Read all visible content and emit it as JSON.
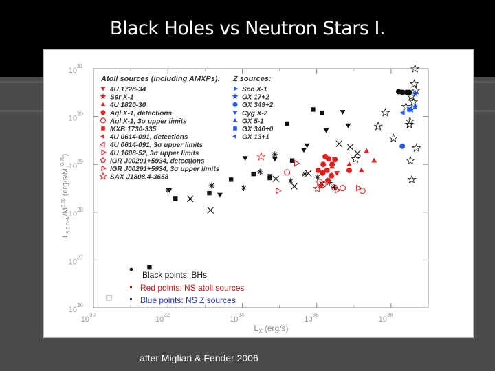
{
  "slide": {
    "title": "Black Holes vs Neutron Stars I.",
    "caption": "after Migliari & Fender 2006"
  },
  "colors": {
    "black": "#111111",
    "red": "#dd2222",
    "blue": "#2255ee",
    "legend_red": "#cc1111",
    "legend_blue": "#2233aa"
  },
  "chart_data": {
    "type": "scatter",
    "title": "",
    "xlabel": "L",
    "xlabel_sub": "X",
    "xlabel_unit": "(erg/s)",
    "ylabel": "L",
    "ylabel_sub": "8.6 GHz",
    "ylabel_unit": "/M",
    "ylabel_unit_sup": "0.78",
    "ylabel_tail": "(erg/s/M",
    "ylabel_tail_sub": "o",
    "ylabel_tail_sup": "0.78",
    "ylabel_close": ")",
    "x_scale": "log",
    "y_scale": "log",
    "xlim": [
      1e+30,
      1e+39
    ],
    "ylim": [
      1e+26,
      1e+31
    ],
    "x_ticks": [
      {
        "value": 1e+30,
        "base": "10",
        "exp": "30"
      },
      {
        "value": 1e+32,
        "base": "10",
        "exp": "32"
      },
      {
        "value": 1e+34,
        "base": "10",
        "exp": "34"
      },
      {
        "value": 1e+36,
        "base": "10",
        "exp": "36"
      },
      {
        "value": 1e+38,
        "base": "10",
        "exp": "38"
      }
    ],
    "y_ticks": [
      {
        "value": 1e+26,
        "base": "10",
        "exp": "26"
      },
      {
        "value": 1e+27,
        "base": "10",
        "exp": "27"
      },
      {
        "value": 1e+28,
        "base": "10",
        "exp": "28"
      },
      {
        "value": 1e+29,
        "base": "10",
        "exp": "29"
      },
      {
        "value": 1e+30,
        "base": "10",
        "exp": "30"
      },
      {
        "value": 1e+31,
        "base": "10",
        "exp": "31"
      }
    ],
    "grid": false,
    "legend_placement": "top-left",
    "legend_left": {
      "header": "Atoll sources (including AMXPs):",
      "entries": [
        {
          "label": "4U 1728-34",
          "marker": "tri-down",
          "color": "red"
        },
        {
          "label": "Ser X-1",
          "marker": "star-filled",
          "color": "red"
        },
        {
          "label": "4U 1820-30",
          "marker": "tri-up",
          "color": "red"
        },
        {
          "label": "Aql X-1, detections",
          "marker": "circle",
          "color": "red"
        },
        {
          "label": "Aql X-1, 3σ upper limits",
          "marker": "circle-open",
          "color": "red"
        },
        {
          "label": "MXB 1730-335",
          "marker": "square",
          "color": "red"
        },
        {
          "label": "4U 0614-091, detections",
          "marker": "tri-left",
          "color": "red"
        },
        {
          "label": "4U 0614-091, 3σ upper limits",
          "marker": "tri-left-open",
          "color": "red"
        },
        {
          "label": "4U 1608-52, 3σ upper limits",
          "marker": "tri-right-open",
          "color": "red"
        },
        {
          "label": "IGR J00291+5934, detections",
          "marker": "pentagon-open",
          "color": "red"
        },
        {
          "label": "IGR J00291+5934, 3σ upper limits",
          "marker": "tri-right-open",
          "color": "red"
        },
        {
          "label": "SAX J1808.4-3658",
          "marker": "star-open",
          "color": "red"
        }
      ]
    },
    "legend_right": {
      "header": "Z sources:",
      "entries": [
        {
          "label": "Sco X-1",
          "marker": "tri-right",
          "color": "blue"
        },
        {
          "label": "GX 17+2",
          "marker": "star-filled",
          "color": "blue"
        },
        {
          "label": "GX 349+2",
          "marker": "circle",
          "color": "blue"
        },
        {
          "label": "Cyg X-2",
          "marker": "tri-down",
          "color": "blue"
        },
        {
          "label": "GX 5-1",
          "marker": "tri-up",
          "color": "blue"
        },
        {
          "label": "GX 340+0",
          "marker": "square",
          "color": "blue"
        },
        {
          "label": "GX 13+1",
          "marker": "tri-left",
          "color": "blue"
        }
      ]
    },
    "annotations": {
      "bh": "Black points: BHs",
      "ns_atoll": "Red points: NS atoll sources",
      "ns_z": "Blue points: NS Z sources"
    },
    "series": [
      {
        "group": "BHs",
        "color": "black",
        "marker": "square",
        "points": [
          [
            3.2e+31,
            7e+26
          ],
          [
            1.6e+32,
            1.9e+28
          ],
          [
            1.3e+33,
            2.5e+28
          ],
          [
            5e+33,
            4.8e+28
          ],
          [
            2e+34,
            6.3e+28
          ],
          [
            5.5e+34,
            5.2e+28
          ],
          [
            2.2e+35,
            1.2e+29
          ],
          [
            1.6e+35,
            7.1e+29
          ],
          [
            8e+35,
            1.4e+30
          ],
          [
            1.4e+36,
            1.2e+30
          ]
        ]
      },
      {
        "group": "BHs",
        "color": "black",
        "marker": "tri-down",
        "points": [
          [
            1.1e+32,
            2.9e+28
          ],
          [
            2.5e+33,
            2.3e+28
          ],
          [
            1.2e+34,
            1.35e+29
          ],
          [
            5.5e+34,
            5.7e+28
          ],
          [
            7.5e+34,
            1.3e+29
          ],
          [
            4.5e+35,
            2e+29
          ],
          [
            5.5e+35,
            2.5e+29
          ],
          [
            1.8e+36,
            5.2e+29
          ],
          [
            5e+36,
            1.25e+30
          ],
          [
            7e+36,
            6.5e+29
          ]
        ]
      },
      {
        "group": "BHs",
        "color": "black",
        "marker": "cross",
        "points": [
          [
            1e+32,
            2.9e+28
          ],
          [
            1.5e+33,
            3.6e+28
          ],
          [
            1.1e+34,
            3.2e+28
          ],
          [
            3e+34,
            7e+28
          ],
          [
            7.5e+34,
            1.6e+29
          ],
          [
            2e+35,
            4.5e+28
          ],
          [
            4.8e+35,
            6.3e+28
          ],
          [
            1.05e+36,
            5.4e+28
          ],
          [
            2.2e+36,
            4.2e+28
          ],
          [
            3e+36,
            3.3e+28
          ]
        ]
      },
      {
        "group": "BHs",
        "color": "black",
        "marker": "x",
        "points": [
          [
            4e+32,
            1.9e+28
          ],
          [
            1.4e+33,
            1.1e+28
          ],
          [
            8e+34,
            5e+28
          ],
          [
            2.5e+35,
            3.5e+28
          ],
          [
            6e+35,
            6.5e+28
          ],
          [
            1.4e+36,
            3.9e+28
          ],
          [
            4e+36,
            2.7e+29
          ],
          [
            8e+36,
            2.3e+29
          ],
          [
            1.25e+37,
            1.7e+29
          ]
        ]
      },
      {
        "group": "BHs",
        "color": "black",
        "marker": "star-open",
        "points": [
          [
            1.1e+37,
            1.3e+29
          ],
          [
            4.5e+37,
            6.2e+29
          ],
          [
            7e+37,
            1.2e+30
          ],
          [
            1.15e+38,
            3.5e+29
          ],
          [
            2.5e+38,
            1.6e+30
          ],
          [
            3.1e+38,
            6.8e+29
          ],
          [
            3.5e+38,
            2.6e+30
          ],
          [
            3.3e+38,
            1.2e+29
          ],
          [
            3.6e+38,
            4.8e+28
          ],
          [
            4e+38,
            2e+30
          ],
          [
            4.4e+38,
            1e+31
          ],
          [
            4.6e+38,
            3.5e+30
          ],
          [
            4.2e+38,
            4.8e+30
          ],
          [
            3.2e+38,
            8e+29
          ],
          [
            4.8e+38,
            2.2e+29
          ]
        ]
      },
      {
        "group": "BHs",
        "color": "black",
        "marker": "circle",
        "points": [
          [
            1.6e+38,
            3.3e+30
          ],
          [
            2e+38,
            3.2e+30
          ],
          [
            2.6e+38,
            3.2e+30
          ],
          [
            3.1e+38,
            3.2e+30
          ]
        ]
      },
      {
        "group": "Atoll",
        "color": "red",
        "marker": "circle",
        "points": [
          [
            1.1e+36,
            7.5e+28
          ],
          [
            1.45e+36,
            6.6e+28
          ],
          [
            1.5e+36,
            1e+29
          ],
          [
            1.9e+36,
            7.5e+28
          ],
          [
            2.1e+36,
            1.3e+29
          ],
          [
            2.5e+36,
            5.8e+28
          ],
          [
            3.1e+36,
            1.25e+29
          ],
          [
            2e+36,
            4.6e+28
          ],
          [
            7.5e+36,
            7.5e+28
          ],
          [
            1.7e+36,
            1.45e+29
          ],
          [
            2.6e+36,
            1e+29
          ]
        ]
      },
      {
        "group": "Atoll",
        "color": "red",
        "marker": "circle-open",
        "points": [
          [
            1.6e+35,
            6.8e+28
          ],
          [
            1.2e+36,
            4.3e+28
          ],
          [
            1.5e+36,
            3.8e+28
          ],
          [
            3e+36,
            3.3e+28
          ],
          [
            5e+36,
            3.2e+28
          ],
          [
            1.7e+37,
            2.8e+28
          ]
        ]
      },
      {
        "group": "Atoll",
        "color": "red",
        "marker": "tri-up",
        "points": [
          [
            2.6e+36,
            9e+28
          ],
          [
            7.5e+36,
            1e+29
          ],
          [
            1.6e+37,
            7.5e+28
          ],
          [
            3.5e+37,
            1.2e+29
          ],
          [
            2.2e+37,
            1.9e+29
          ]
        ]
      },
      {
        "group": "Atoll",
        "color": "red",
        "marker": "tri-down",
        "points": [
          [
            3e+36,
            1.3e+29
          ],
          [
            3.5e+36,
            6.6e+28
          ]
        ]
      },
      {
        "group": "Atoll",
        "color": "red",
        "marker": "star-filled",
        "points": [
          [
            1.3e+36,
            3.5e+28
          ],
          [
            2.5e+36,
            5.8e+28
          ]
        ]
      },
      {
        "group": "Atoll",
        "color": "red",
        "marker": "tri-right-open",
        "points": [
          [
            9e+34,
            2.8e+28
          ],
          [
            2.8e+35,
            1.05e+29
          ],
          [
            3.5e+36,
            2.9e+28
          ],
          [
            1.3e+37,
            3.2e+28
          ]
        ]
      },
      {
        "group": "Atoll",
        "color": "red",
        "marker": "star-open",
        "points": [
          [
            3.2e+34,
            1.45e+29
          ],
          [
            1.05e+36,
            3.1e+28
          ]
        ]
      },
      {
        "group": "Z",
        "color": "blue",
        "marker": "star-filled",
        "points": [
          [
            3.5e+38,
            1.4e+30
          ],
          [
            4.4e+38,
            1.6e+30
          ],
          [
            4.5e+38,
            3e+30
          ]
        ]
      },
      {
        "group": "Z",
        "color": "blue",
        "marker": "circle",
        "points": [
          [
            2e+38,
            2.4e+29
          ]
        ]
      },
      {
        "group": "Z",
        "color": "blue",
        "marker": "square",
        "points": [
          [
            3.1e+38,
            1.4e+30
          ]
        ]
      },
      {
        "group": "Z",
        "color": "blue",
        "marker": "tri-left",
        "points": [
          [
            2.1e+38,
            1.2e+30
          ]
        ]
      }
    ]
  }
}
